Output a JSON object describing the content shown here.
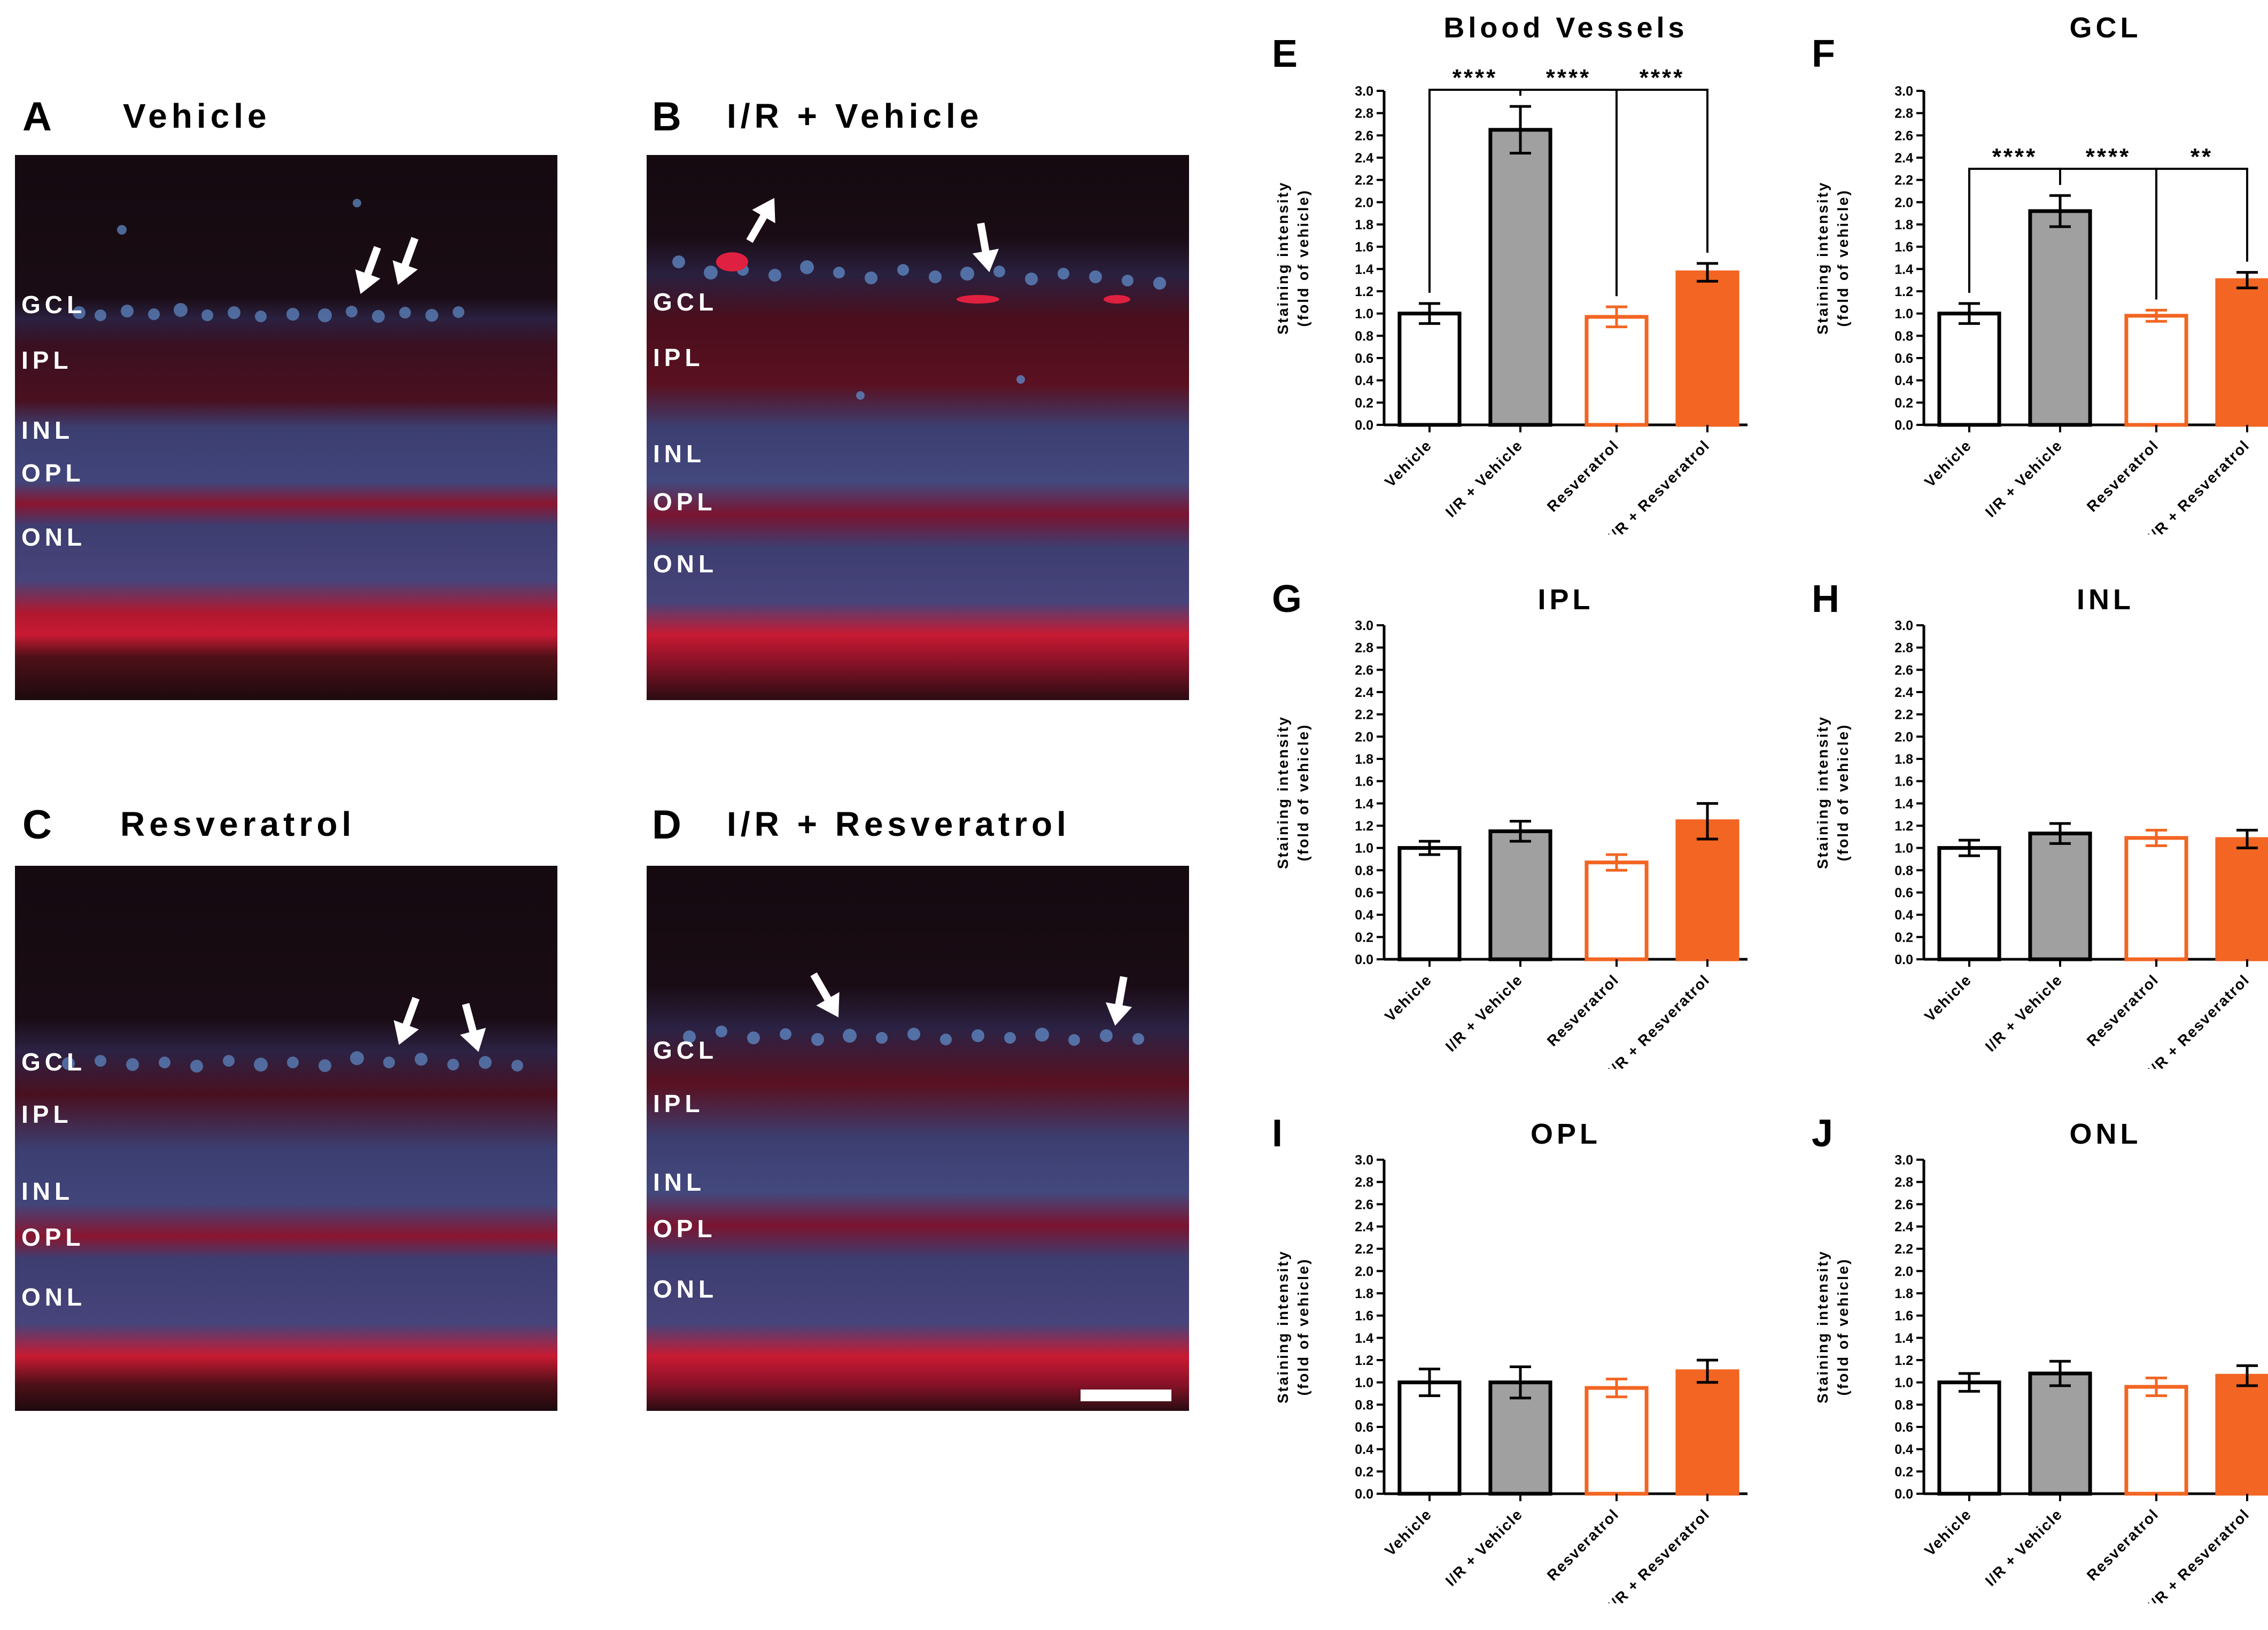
{
  "figure": {
    "micrographs": [
      {
        "letter": "A",
        "title": "Vehicle",
        "layers": [
          "GCL",
          "IPL",
          "INL",
          "OPL",
          "ONL"
        ]
      },
      {
        "letter": "B",
        "title": "I/R + Vehicle",
        "layers": [
          "GCL",
          "IPL",
          "INL",
          "OPL",
          "ONL"
        ]
      },
      {
        "letter": "C",
        "title": "Resveratrol",
        "layers": [
          "GCL",
          "IPL",
          "INL",
          "OPL",
          "ONL"
        ]
      },
      {
        "letter": "D",
        "title": "I/R + Resveratrol",
        "layers": [
          "GCL",
          "IPL",
          "INL",
          "OPL",
          "ONL"
        ]
      }
    ],
    "colors": {
      "vehicle": "#000000",
      "ir_vehicle": "#a0a0a0",
      "resveratrol": "#f26522",
      "ir_resveratrol": "#f26522",
      "micro_bg": "#140a10",
      "stain_red": "#d0203a",
      "dapi_blue": "#5a7fb8"
    }
  },
  "chart_data": [
    {
      "letter": "E",
      "type": "bar",
      "title": "Blood Vessels",
      "categories": [
        "Vehicle",
        "I/R + Vehicle",
        "Resveratrol",
        "I/R + Resveratrol"
      ],
      "values": [
        1.0,
        2.65,
        0.97,
        1.37
      ],
      "errors": [
        0.09,
        0.21,
        0.09,
        0.08
      ],
      "ylabel": "Staining intensity\n(fold of vehicle)",
      "ylim": [
        0,
        3.0
      ],
      "yticks": [
        "0.0",
        "0.2",
        "0.4",
        "0.6",
        "0.8",
        "1.0",
        "1.2",
        "1.4",
        "1.6",
        "1.8",
        "2.0",
        "2.2",
        "2.4",
        "2.6",
        "2.8",
        "3.0"
      ],
      "significance": [
        {
          "from": 0,
          "to": 1,
          "label": "****"
        },
        {
          "from": 1,
          "to": 2,
          "label": "****"
        },
        {
          "from": 2,
          "to": 3,
          "label": "****"
        }
      ]
    },
    {
      "letter": "F",
      "type": "bar",
      "title": "GCL",
      "categories": [
        "Vehicle",
        "I/R + Vehicle",
        "Resveratrol",
        "I/R + Resveratrol"
      ],
      "values": [
        1.0,
        1.92,
        0.98,
        1.3
      ],
      "errors": [
        0.09,
        0.14,
        0.05,
        0.07
      ],
      "ylabel": "Staining intensity\n(fold of vehicle)",
      "ylim": [
        0,
        3.0
      ],
      "yticks": [
        "0.0",
        "0.2",
        "0.4",
        "0.6",
        "0.8",
        "1.0",
        "1.2",
        "1.4",
        "1.6",
        "1.8",
        "2.0",
        "2.2",
        "2.4",
        "2.6",
        "2.8",
        "3.0"
      ],
      "significance": [
        {
          "from": 0,
          "to": 1,
          "label": "****"
        },
        {
          "from": 1,
          "to": 2,
          "label": "****"
        },
        {
          "from": 2,
          "to": 3,
          "label": "**"
        }
      ]
    },
    {
      "letter": "G",
      "type": "bar",
      "title": "IPL",
      "categories": [
        "Vehicle",
        "I/R + Vehicle",
        "Resveratrol",
        "I/R + Resveratrol"
      ],
      "values": [
        1.0,
        1.15,
        0.87,
        1.24
      ],
      "errors": [
        0.06,
        0.09,
        0.07,
        0.16
      ],
      "ylabel": "Staining intensity\n(fold of vehicle)",
      "ylim": [
        0,
        3.0
      ],
      "yticks": [
        "0.0",
        "0.2",
        "0.4",
        "0.6",
        "0.8",
        "1.0",
        "1.2",
        "1.4",
        "1.6",
        "1.8",
        "2.0",
        "2.2",
        "2.4",
        "2.6",
        "2.8",
        "3.0"
      ],
      "significance": []
    },
    {
      "letter": "H",
      "type": "bar",
      "title": "INL",
      "categories": [
        "Vehicle",
        "I/R + Vehicle",
        "Resveratrol",
        "I/R + Resveratrol"
      ],
      "values": [
        1.0,
        1.13,
        1.09,
        1.08
      ],
      "errors": [
        0.07,
        0.09,
        0.07,
        0.08
      ],
      "ylabel": "Staining intensity\n(fold of vehicle)",
      "ylim": [
        0,
        3.0
      ],
      "yticks": [
        "0.0",
        "0.2",
        "0.4",
        "0.6",
        "0.8",
        "1.0",
        "1.2",
        "1.4",
        "1.6",
        "1.8",
        "2.0",
        "2.2",
        "2.4",
        "2.6",
        "2.8",
        "3.0"
      ],
      "significance": []
    },
    {
      "letter": "I",
      "type": "bar",
      "title": "OPL",
      "categories": [
        "Vehicle",
        "I/R + Vehicle",
        "Resveratrol",
        "I/R + Resveratrol"
      ],
      "values": [
        1.0,
        1.0,
        0.95,
        1.1
      ],
      "errors": [
        0.12,
        0.14,
        0.08,
        0.1
      ],
      "ylabel": "Staining intensity\n(fold of vehicle)",
      "ylim": [
        0,
        3.0
      ],
      "yticks": [
        "0.0",
        "0.2",
        "0.4",
        "0.6",
        "0.8",
        "1.0",
        "1.2",
        "1.4",
        "1.6",
        "1.8",
        "2.0",
        "2.2",
        "2.4",
        "2.6",
        "2.8",
        "3.0"
      ],
      "significance": []
    },
    {
      "letter": "J",
      "type": "bar",
      "title": "ONL",
      "categories": [
        "Vehicle",
        "I/R + Vehicle",
        "Resveratrol",
        "I/R + Resveratrol"
      ],
      "values": [
        1.0,
        1.08,
        0.96,
        1.06
      ],
      "errors": [
        0.08,
        0.11,
        0.08,
        0.09
      ],
      "ylabel": "Staining intensity\n(fold of vehicle)",
      "ylim": [
        0,
        3.0
      ],
      "yticks": [
        "0.0",
        "0.2",
        "0.4",
        "0.6",
        "0.8",
        "1.0",
        "1.2",
        "1.4",
        "1.6",
        "1.8",
        "2.0",
        "2.2",
        "2.4",
        "2.6",
        "2.8",
        "3.0"
      ],
      "significance": []
    }
  ]
}
